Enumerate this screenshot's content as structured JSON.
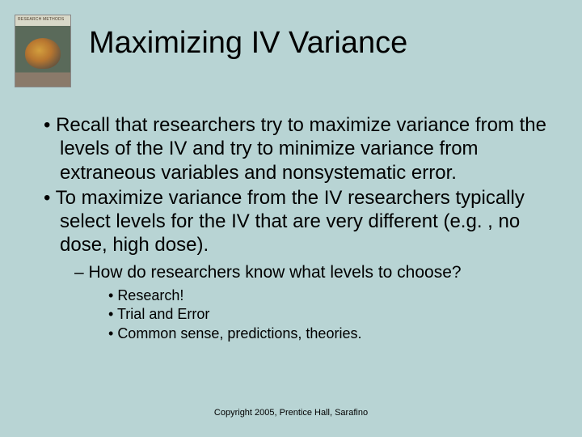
{
  "slide": {
    "title": "Maximizing IV Variance",
    "bullets_l1": [
      "Recall that researchers try to maximize variance from the levels of the IV and try to minimize variance from extraneous variables and nonsystematic error.",
      "To maximize variance from the IV researchers typically select levels for the IV that are very different (e.g. , no dose, high dose)."
    ],
    "bullets_l2": [
      "How do researchers know what levels to choose?"
    ],
    "bullets_l3": [
      "Research!",
      "Trial and Error",
      "Common sense, predictions, theories."
    ],
    "footer": "Copyright 2005, Prentice Hall, Sarafino"
  },
  "style": {
    "background_color": "#b8d4d4",
    "text_color": "#000000",
    "title_fontsize": 38,
    "l1_fontsize": 24,
    "l2_fontsize": 21,
    "l3_fontsize": 18,
    "footer_fontsize": 11,
    "font_family": "Arial"
  }
}
